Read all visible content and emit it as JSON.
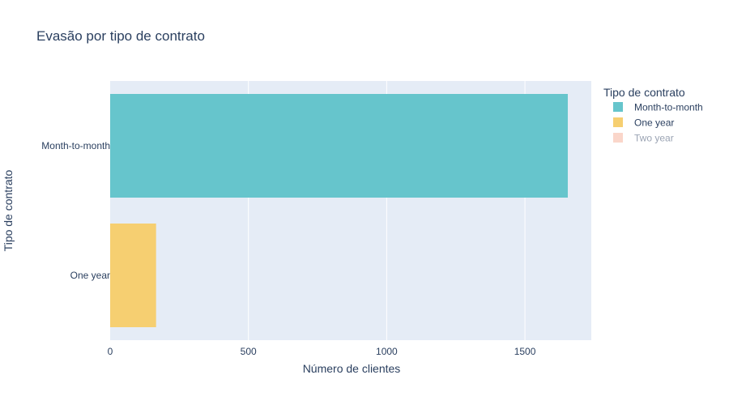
{
  "chart_data": {
    "type": "bar",
    "orientation": "horizontal",
    "title": "Evasão por tipo de contrato",
    "xlabel": "Número de clientes",
    "ylabel": "Tipo de contrato",
    "xlim": [
      0,
      1740
    ],
    "x_ticks": [
      0,
      500,
      1000,
      1500
    ],
    "grid": true,
    "legend_position": "right",
    "legend_title": "Tipo de contrato",
    "categories": [
      "Month-to-month",
      "One year"
    ],
    "series": [
      {
        "name": "Month-to-month",
        "values": [
          1655,
          0
        ],
        "color": "#66c5cc"
      },
      {
        "name": "One year",
        "values": [
          0,
          166
        ],
        "color": "#f6cf71"
      },
      {
        "name": "Two year",
        "values": [
          0,
          0
        ],
        "color": "#f8c4b4",
        "hidden": true
      }
    ],
    "colors": {
      "plot_background": "#e5ecf6",
      "text": "#2a3f5f",
      "legend_hidden_text": "#9aa3b3"
    }
  }
}
